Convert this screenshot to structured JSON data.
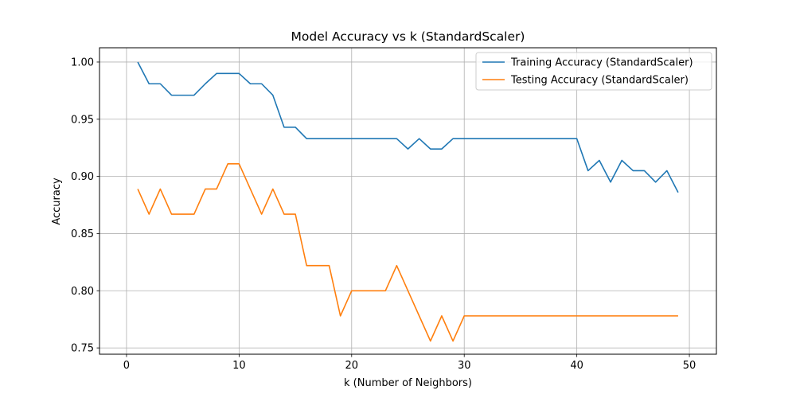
{
  "chart_data": {
    "type": "line",
    "title": "Model Accuracy vs k (StandardScaler)",
    "xlabel": "k (Number of Neighbors)",
    "ylabel": "Accuracy",
    "xlim": [
      -2.4,
      52.4
    ],
    "ylim": [
      0.7445,
      1.0125
    ],
    "x_ticks": [
      0,
      10,
      20,
      30,
      40,
      50
    ],
    "x_tick_labels": [
      "0",
      "10",
      "20",
      "30",
      "40",
      "50"
    ],
    "y_ticks": [
      0.75,
      0.8,
      0.85,
      0.9,
      0.95,
      1.0
    ],
    "y_tick_labels": [
      "0.75",
      "0.80",
      "0.85",
      "0.90",
      "0.95",
      "1.00"
    ],
    "grid": true,
    "legend_position": "top-right",
    "x": [
      1,
      2,
      3,
      4,
      5,
      6,
      7,
      8,
      9,
      10,
      11,
      12,
      13,
      14,
      15,
      16,
      17,
      18,
      19,
      20,
      21,
      22,
      23,
      24,
      25,
      26,
      27,
      28,
      29,
      30,
      31,
      32,
      33,
      34,
      35,
      36,
      37,
      38,
      39,
      40,
      41,
      42,
      43,
      44,
      45,
      46,
      47,
      48,
      49
    ],
    "series": [
      {
        "name": "Training Accuracy (StandardScaler)",
        "color": "#1f77b4",
        "values": [
          1.0,
          0.981,
          0.981,
          0.971,
          0.971,
          0.971,
          0.981,
          0.99,
          0.99,
          0.99,
          0.981,
          0.981,
          0.971,
          0.943,
          0.943,
          0.933,
          0.933,
          0.933,
          0.933,
          0.933,
          0.933,
          0.933,
          0.933,
          0.933,
          0.924,
          0.933,
          0.924,
          0.924,
          0.933,
          0.933,
          0.933,
          0.933,
          0.933,
          0.933,
          0.933,
          0.933,
          0.933,
          0.933,
          0.933,
          0.933,
          0.905,
          0.914,
          0.895,
          0.914,
          0.905,
          0.905,
          0.895,
          0.905,
          0.886
        ]
      },
      {
        "name": "Testing Accuracy (StandardScaler)",
        "color": "#ff7f0e",
        "values": [
          0.889,
          0.867,
          0.889,
          0.867,
          0.867,
          0.867,
          0.889,
          0.889,
          0.911,
          0.911,
          0.889,
          0.867,
          0.889,
          0.867,
          0.867,
          0.822,
          0.822,
          0.822,
          0.778,
          0.8,
          0.8,
          0.8,
          0.8,
          0.822,
          0.8,
          0.778,
          0.756,
          0.778,
          0.756,
          0.778,
          0.778,
          0.778,
          0.778,
          0.778,
          0.778,
          0.778,
          0.778,
          0.778,
          0.778,
          0.778,
          0.778,
          0.778,
          0.778,
          0.778,
          0.778,
          0.778,
          0.778,
          0.778,
          0.778
        ]
      }
    ]
  }
}
